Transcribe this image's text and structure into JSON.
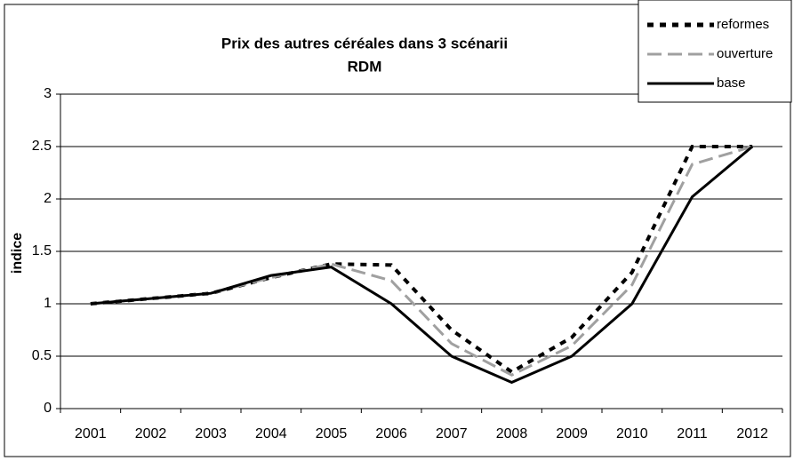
{
  "chart_data": {
    "type": "line",
    "title": "Prix des autres céréales dans 3 scénarii",
    "subtitle": "RDM",
    "y_label": "indice",
    "categories": [
      "2001",
      "2002",
      "2003",
      "2004",
      "2005",
      "2006",
      "2007",
      "2008",
      "2009",
      "2010",
      "2011",
      "2012"
    ],
    "series": [
      {
        "name": "reformes",
        "color": "#000000",
        "dash": "dotted",
        "values": [
          1.0,
          1.05,
          1.1,
          1.25,
          1.38,
          1.37,
          0.75,
          0.35,
          0.68,
          1.3,
          2.5,
          2.5
        ]
      },
      {
        "name": "ouverture",
        "color": "#a0a0a0",
        "dash": "dashed",
        "values": [
          1.0,
          1.05,
          1.1,
          1.25,
          1.38,
          1.22,
          0.62,
          0.32,
          0.6,
          1.18,
          2.33,
          2.5
        ]
      },
      {
        "name": "base",
        "color": "#000000",
        "dash": "solid",
        "values": [
          1.0,
          1.05,
          1.1,
          1.27,
          1.35,
          1.0,
          0.5,
          0.25,
          0.5,
          1.0,
          2.02,
          2.5
        ]
      }
    ],
    "ylim": [
      0,
      3
    ],
    "yticks": [
      0,
      0.5,
      1,
      1.5,
      2,
      2.5,
      3
    ],
    "grid": true,
    "legend": "top-right"
  }
}
